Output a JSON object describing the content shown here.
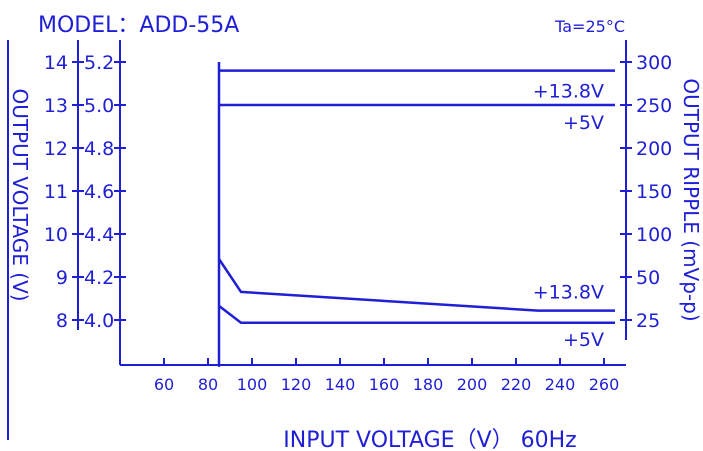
{
  "chart_data": {
    "type": "line",
    "title": "MODEL：ADD-55A",
    "condition": "Ta=25°C",
    "xlabel": "INPUT  VOLTAGE（V） 60Hz",
    "ylabel_left": "OUTPUT VOLTAGE (V)",
    "ylabel_right": "OUTPUT RIPPLE (mVp-p)",
    "x_ticks": [
      60,
      80,
      100,
      120,
      140,
      160,
      180,
      200,
      220,
      240,
      260
    ],
    "y_ticks_outer": [
      "14",
      "13",
      "12",
      "11",
      "10",
      "9",
      "8"
    ],
    "y_ticks_inner": [
      "5.2",
      "5.0",
      "4.8",
      "4.6",
      "4.4",
      "4.2",
      "4.0"
    ],
    "y_ticks_right": [
      "300",
      "250",
      "200",
      "150",
      "100",
      "50",
      "25"
    ],
    "xlim": [
      40,
      270
    ],
    "ylim_right": [
      -70,
      345
    ],
    "ripple_axis_units_note": "lines plotted on right axis (mVp-p)",
    "series": [
      {
        "name": "+13.8V",
        "axis": "voltage",
        "x": [
          85,
          265
        ],
        "y": [
          13.8,
          13.8
        ]
      },
      {
        "name": "+5V",
        "axis": "voltage",
        "x": [
          85,
          265
        ],
        "y": [
          5.0,
          5.0
        ]
      },
      {
        "name": "+13.8V",
        "axis": "ripple",
        "x": [
          85,
          95,
          230,
          265
        ],
        "y": [
          90,
          55,
          35,
          35
        ]
      },
      {
        "name": "+5V",
        "axis": "ripple",
        "x": [
          85,
          95,
          265
        ],
        "y": [
          40,
          22,
          22
        ]
      }
    ],
    "startup_line": {
      "x": 85,
      "y_from": -25,
      "y_to": 300
    }
  },
  "colors": {
    "ink": "#1f1fd6"
  }
}
